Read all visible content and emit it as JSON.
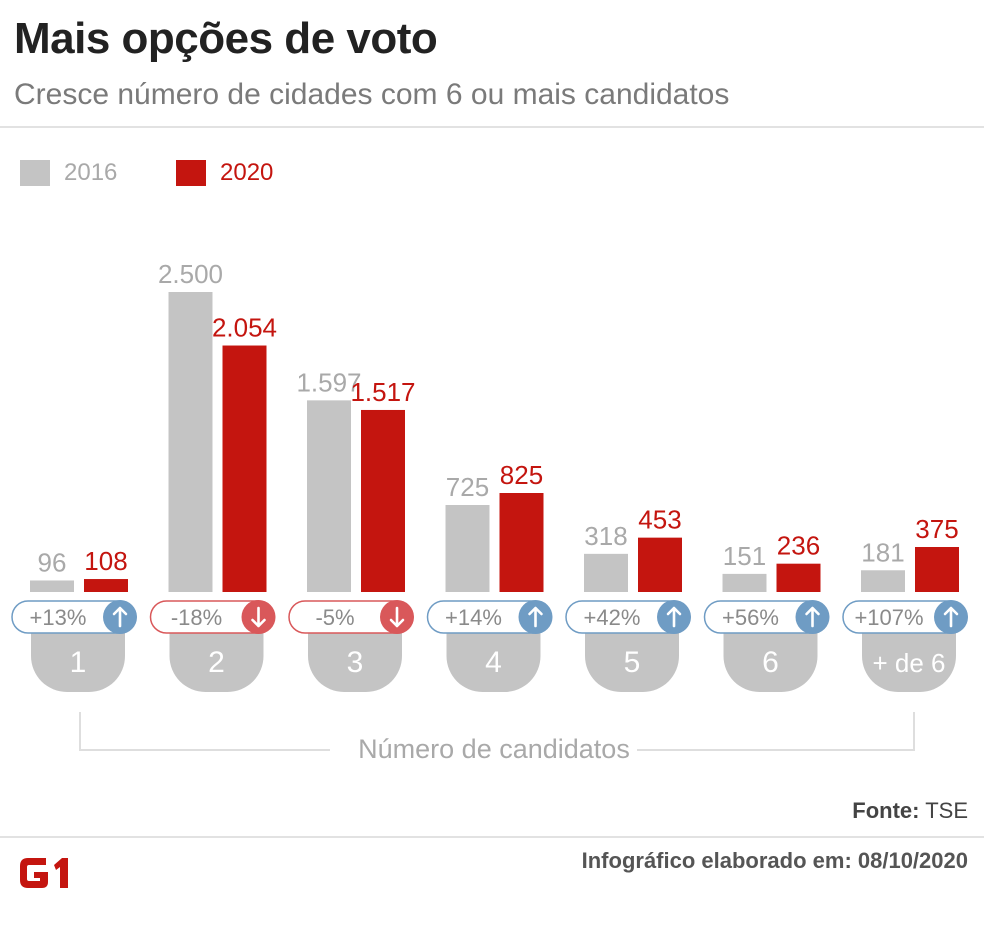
{
  "header": {
    "title": "Mais opções de voto",
    "subtitle": "Cresce número de cidades com 6 ou mais candidatos"
  },
  "legend": [
    {
      "label": "2016",
      "color": "#c4c4c4",
      "text_color": "#a9a9a9"
    },
    {
      "label": "2020",
      "color": "#c4150f",
      "text_color": "#c4150f"
    }
  ],
  "chart_data": {
    "type": "bar",
    "categories": [
      "1",
      "2",
      "3",
      "4",
      "5",
      "6",
      "+ de 6"
    ],
    "series": [
      {
        "name": "2016",
        "values": [
          96,
          2500,
          1597,
          725,
          318,
          151,
          181
        ],
        "labels": [
          "96",
          "2.500",
          "1.597",
          "725",
          "318",
          "151",
          "181"
        ],
        "color": "#c4c4c4"
      },
      {
        "name": "2020",
        "values": [
          108,
          2054,
          1517,
          825,
          453,
          236,
          375
        ],
        "labels": [
          "108",
          "2.054",
          "1.517",
          "825",
          "453",
          "236",
          "375"
        ],
        "color": "#c4150f"
      }
    ],
    "changes": [
      {
        "label": "+13%",
        "direction": "up"
      },
      {
        "label": "-18%",
        "direction": "down"
      },
      {
        "label": "-5%",
        "direction": "down"
      },
      {
        "label": "+14%",
        "direction": "up"
      },
      {
        "label": "+42%",
        "direction": "up"
      },
      {
        "label": "+56%",
        "direction": "up"
      },
      {
        "label": "+107%",
        "direction": "up"
      }
    ],
    "xlabel": "Número de candidatos",
    "ylim": [
      0,
      2500
    ],
    "colors": {
      "up": "#6f9cc4",
      "down": "#d9585a",
      "category_tab": "#c4c4c4"
    }
  },
  "footer": {
    "source_label": "Fonte:",
    "source_value": "TSE",
    "note": "Infográfico elaborado em: 08/10/2020",
    "logo_text": "G1"
  }
}
